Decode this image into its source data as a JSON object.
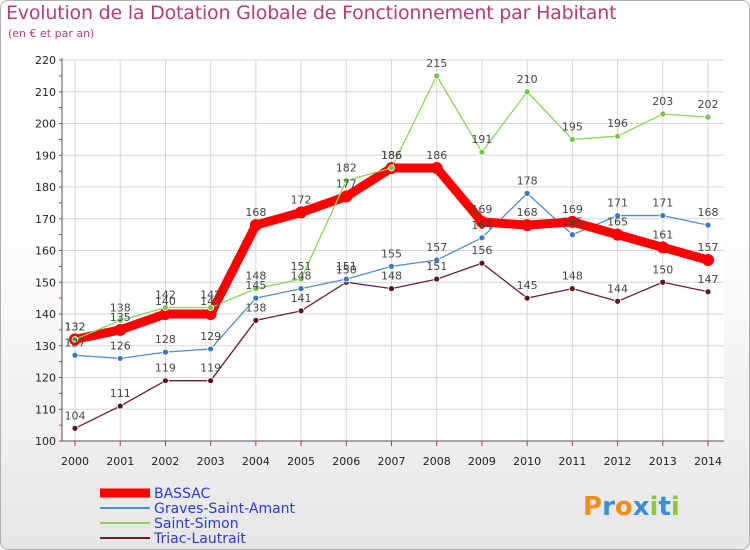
{
  "chart_data": {
    "type": "line",
    "title": "Evolution de la Dotation Globale de Fonctionnement par Habitant",
    "subtitle": "(en € et par an)",
    "xlabel": "",
    "ylabel": "",
    "ylim": [
      100,
      220
    ],
    "yticks": [
      "100",
      "110",
      "120",
      "130",
      "140",
      "150",
      "160",
      "170",
      "180",
      "190",
      "200",
      "210",
      "220"
    ],
    "categories": [
      "2000",
      "2001",
      "2002",
      "2003",
      "2004",
      "2005",
      "2006",
      "2007",
      "2008",
      "2009",
      "2010",
      "2011",
      "2012",
      "2013",
      "2014"
    ],
    "grid": true,
    "legend_position": "bottom-left",
    "series": [
      {
        "name": "BASSAC",
        "color": "#ff0000",
        "values": [
          132,
          135,
          140,
          140,
          168,
          172,
          177,
          186,
          186,
          169,
          168,
          169,
          165,
          161,
          157
        ]
      },
      {
        "name": "Graves-Saint-Amant",
        "color": "#4f8fd0",
        "values": [
          127,
          126,
          128,
          129,
          145,
          148,
          151,
          155,
          157,
          164,
          178,
          165,
          171,
          171,
          168
        ]
      },
      {
        "name": "Saint-Simon",
        "color": "#88d657",
        "values": [
          132,
          138,
          142,
          142,
          148,
          151,
          182,
          186,
          215,
          191,
          210,
          195,
          196,
          203,
          202
        ]
      },
      {
        "name": "Triac-Lautrait",
        "color": "#6b1f2a",
        "values": [
          104,
          111,
          119,
          119,
          138,
          141,
          150,
          148,
          151,
          156,
          145,
          148,
          144,
          150,
          147
        ]
      }
    ]
  },
  "logo": {
    "text": "Proxiti",
    "letters": [
      "P",
      "r",
      "o",
      "x",
      "i",
      "t",
      "i"
    ]
  }
}
